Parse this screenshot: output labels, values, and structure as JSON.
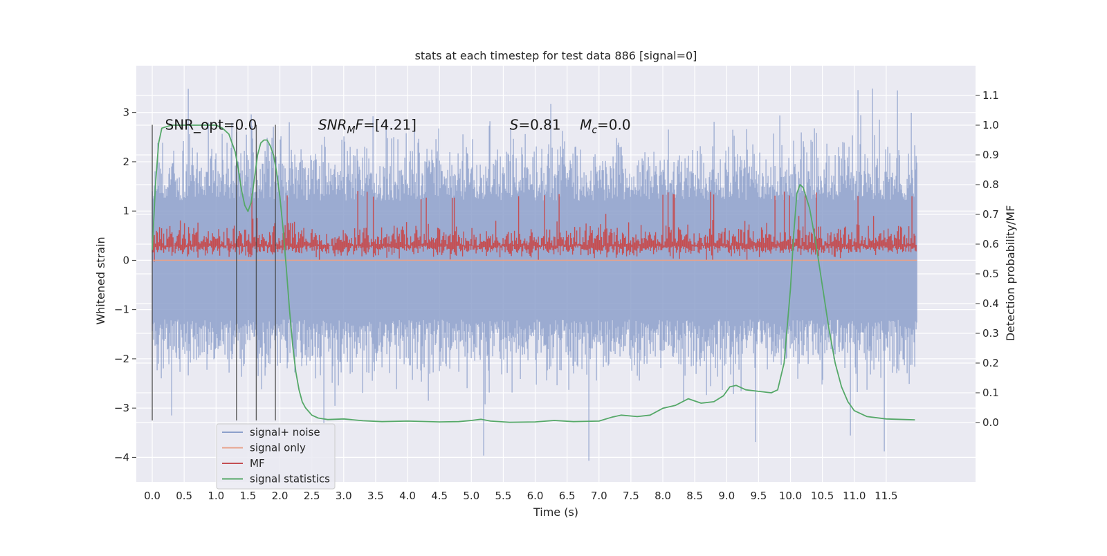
{
  "chart_data": {
    "type": "line",
    "title": "stats at each timestep for test data 886 [signal=0]",
    "xlabel": "Time (s)",
    "ylabel": "Whitened strain",
    "ylabel_right": "Detection probability/MF",
    "xlim": [
      -0.25,
      12.9
    ],
    "ylim": [
      -4.5,
      3.95
    ],
    "ylim_right": [
      -0.2,
      1.2
    ],
    "x_ticks": [
      0.0,
      0.5,
      1.0,
      1.5,
      2.0,
      2.5,
      3.0,
      3.5,
      4.0,
      4.5,
      5.0,
      5.5,
      6.0,
      6.5,
      7.0,
      7.5,
      8.0,
      8.5,
      9.0,
      9.5,
      10.0,
      10.5,
      11.0,
      11.5
    ],
    "x_tick_labels": [
      "0.0",
      "0.5",
      "1.0",
      "1.5",
      "2.0",
      "2.5",
      "3.0",
      "3.5",
      "4.0",
      "4.5",
      "5.0",
      "5.5",
      "6.0",
      "6.5",
      "7.0",
      "7.5",
      "8.0",
      "8.5",
      "9.0",
      "9.5",
      "10.0",
      "10.5",
      "11.0",
      "11.5"
    ],
    "y_ticks": [
      -4,
      -3,
      -2,
      -1,
      0,
      1,
      2,
      3
    ],
    "y_tick_labels": [
      "−4",
      "−3",
      "−2",
      "−1",
      "0",
      "1",
      "2",
      "3"
    ],
    "y_ticks_right": [
      0.0,
      0.1,
      0.2,
      0.3,
      0.4,
      0.5,
      0.6,
      0.7,
      0.8,
      0.9,
      1.0,
      1.1
    ],
    "y_tick_labels_right": [
      "0.0",
      "0.1",
      "0.2",
      "0.3",
      "0.4",
      "0.5",
      "0.6",
      "0.7",
      "0.8",
      "0.9",
      "1.0",
      "1.1"
    ],
    "grid": true,
    "legend_position": "bottom-left",
    "background_color": "#eaeaf2",
    "series": [
      {
        "name": "signal+ noise",
        "color": "#8da0cb",
        "axis": "left",
        "x_range": [
          0.0,
          11.98
        ],
        "amplitude_band": [
          -2.0,
          2.2
        ],
        "extremes": [
          -4.1,
          3.6
        ]
      },
      {
        "name": "signal only",
        "color": "#e8a28b",
        "axis": "left",
        "x": [
          0.0,
          11.98
        ],
        "y": [
          0.0,
          0.0
        ]
      },
      {
        "name": "MF",
        "color": "#c44e52",
        "axis": "right",
        "x_range": [
          0.0,
          11.98
        ],
        "amplitude_band": [
          0.53,
          0.78
        ]
      },
      {
        "name": "signal statistics",
        "color": "#55a868",
        "axis": "right",
        "x": [
          0.0,
          0.05,
          0.1,
          0.15,
          0.3,
          0.5,
          0.8,
          1.0,
          1.1,
          1.2,
          1.3,
          1.35,
          1.4,
          1.45,
          1.5,
          1.55,
          1.6,
          1.65,
          1.7,
          1.75,
          1.8,
          1.85,
          1.9,
          1.95,
          2.0,
          2.05,
          2.1,
          2.15,
          2.2,
          2.25,
          2.3,
          2.35,
          2.4,
          2.5,
          2.6,
          2.75,
          3.0,
          3.3,
          3.6,
          4.0,
          4.5,
          4.8,
          5.0,
          5.15,
          5.3,
          5.6,
          6.0,
          6.3,
          6.6,
          7.0,
          7.2,
          7.35,
          7.6,
          7.8,
          8.0,
          8.2,
          8.4,
          8.6,
          8.8,
          8.95,
          9.05,
          9.15,
          9.3,
          9.5,
          9.7,
          9.8,
          9.9,
          10.0,
          10.05,
          10.1,
          10.15,
          10.2,
          10.3,
          10.4,
          10.5,
          10.6,
          10.7,
          10.8,
          10.9,
          11.0,
          11.2,
          11.5,
          11.8,
          11.95
        ],
        "y": [
          0.58,
          0.8,
          0.94,
          0.99,
          1.0,
          1.0,
          1.0,
          1.0,
          0.99,
          0.97,
          0.91,
          0.85,
          0.78,
          0.73,
          0.71,
          0.74,
          0.82,
          0.9,
          0.94,
          0.95,
          0.95,
          0.93,
          0.9,
          0.84,
          0.76,
          0.65,
          0.52,
          0.38,
          0.26,
          0.17,
          0.11,
          0.07,
          0.05,
          0.025,
          0.015,
          0.01,
          0.012,
          0.006,
          0.003,
          0.005,
          0.002,
          0.003,
          0.007,
          0.011,
          0.005,
          0.001,
          0.002,
          0.007,
          0.003,
          0.005,
          0.018,
          0.025,
          0.02,
          0.025,
          0.048,
          0.058,
          0.08,
          0.065,
          0.07,
          0.09,
          0.12,
          0.125,
          0.11,
          0.105,
          0.1,
          0.11,
          0.2,
          0.45,
          0.63,
          0.77,
          0.8,
          0.79,
          0.72,
          0.6,
          0.46,
          0.32,
          0.2,
          0.12,
          0.07,
          0.04,
          0.02,
          0.012,
          0.01,
          0.009
        ]
      }
    ],
    "vertical_lines": [
      {
        "x": 0.0,
        "y_range": [
          -3.25,
          2.75
        ]
      },
      {
        "x": 1.32,
        "y_range": [
          -3.25,
          2.75
        ]
      },
      {
        "x": 1.63,
        "y_range": [
          -3.25,
          2.75
        ]
      },
      {
        "x": 1.93,
        "y_range": [
          -3.25,
          2.75
        ]
      }
    ],
    "annotations": [
      {
        "text": "SNR_opt=0.0",
        "x": 0.2,
        "y": 2.75
      },
      {
        "text": "SNR_MF=[4.21]",
        "x": 2.6,
        "y": 2.75,
        "base": "SNR",
        "sub": "M",
        "tail": "F=[4.21]"
      },
      {
        "text": "S=0.81",
        "x": 5.6,
        "y": 2.75,
        "base": "S",
        "tail": "=0.81"
      },
      {
        "text": "M_c=0.0",
        "x": 6.7,
        "y": 2.75,
        "base": "M",
        "sub": "c",
        "tail": "=0.0"
      }
    ]
  }
}
